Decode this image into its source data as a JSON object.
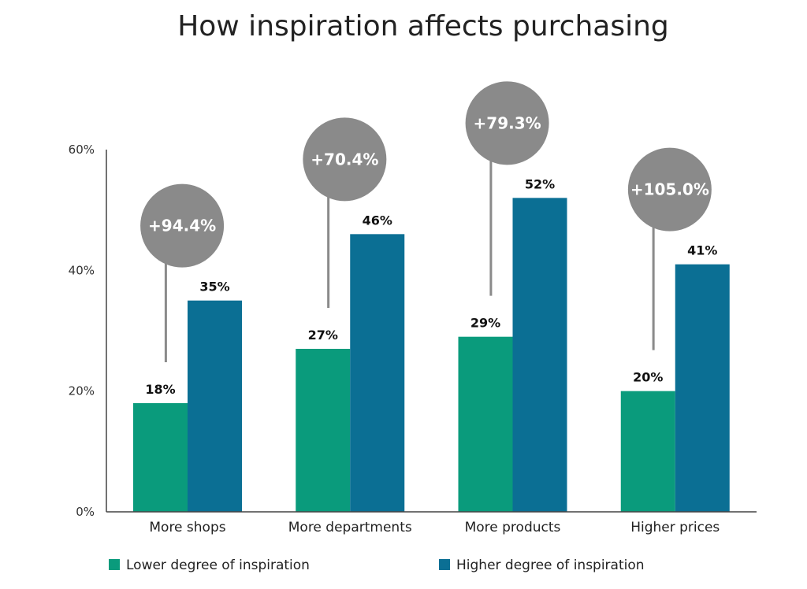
{
  "chart_data": {
    "type": "bar",
    "title": "How inspiration affects purchasing",
    "xlabel": "",
    "ylabel": "",
    "ylim": [
      0,
      60
    ],
    "yticks": [
      0,
      20,
      40,
      60
    ],
    "ytick_labels": [
      "0%",
      "20%",
      "40%",
      "60%"
    ],
    "categories": [
      "More shops",
      "More departments",
      "More products",
      "Higher prices"
    ],
    "series": [
      {
        "name": "Lower degree of inspiration",
        "values": [
          18,
          27,
          29,
          20
        ],
        "labels": [
          "18%",
          "27%",
          "29%",
          "20%"
        ],
        "color": "#0a9b7c"
      },
      {
        "name": "Higher degree of inspiration",
        "values": [
          35,
          46,
          52,
          41
        ],
        "labels": [
          "35%",
          "46%",
          "52%",
          "41%"
        ],
        "color": "#0b6f94"
      }
    ],
    "annotations": [
      "+94.4%",
      "+70.4%",
      "+79.3%",
      "+105.0%"
    ],
    "annotation_color": "#8a8a8a",
    "legend": "bottom",
    "grid": false
  }
}
